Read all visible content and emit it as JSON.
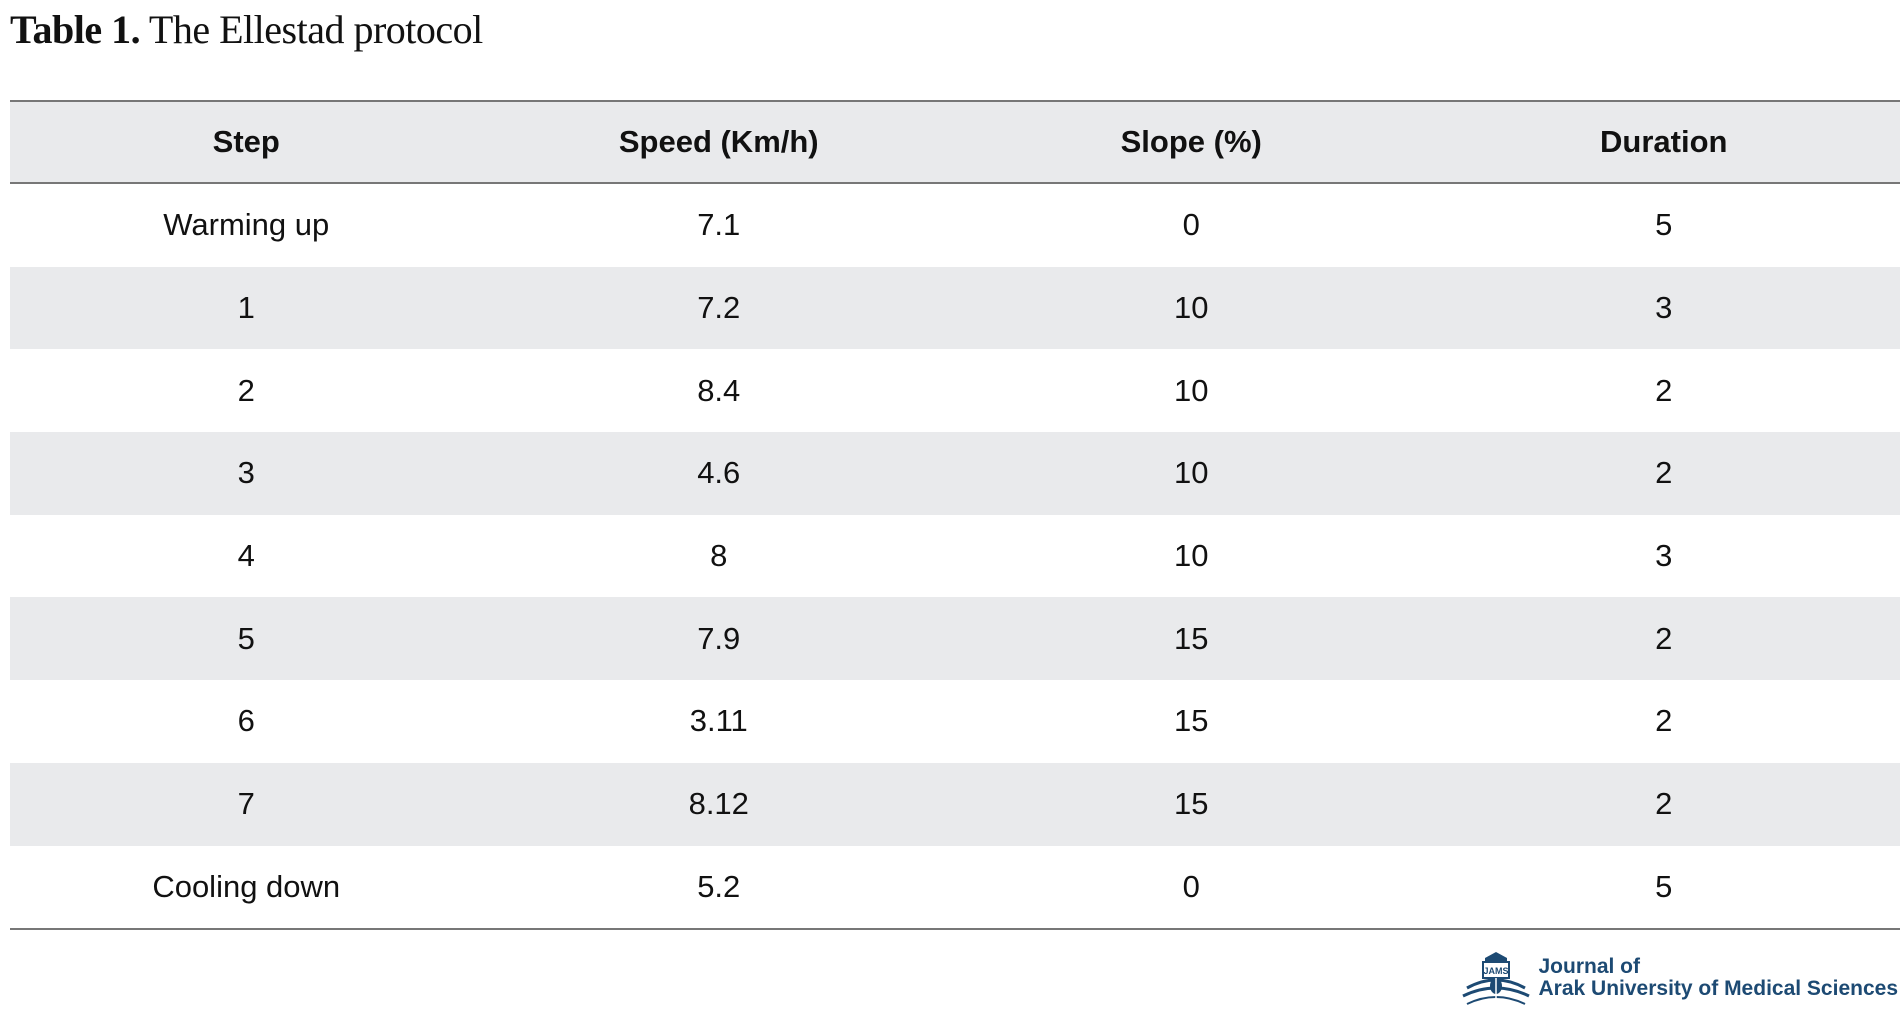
{
  "caption": {
    "label": "Table 1.",
    "title": "The Ellestad protocol"
  },
  "table": {
    "columns": [
      "Step",
      "Speed (Km/h)",
      "Slope (%)",
      "Duration"
    ],
    "rows": [
      [
        "Warming up",
        "7.1",
        "0",
        "5"
      ],
      [
        "1",
        "7.2",
        "10",
        "3"
      ],
      [
        "2",
        "8.4",
        "10",
        "2"
      ],
      [
        "3",
        "4.6",
        "10",
        "2"
      ],
      [
        "4",
        "8",
        "10",
        "3"
      ],
      [
        "5",
        "7.9",
        "15",
        "2"
      ],
      [
        "6",
        "3.11",
        "15",
        "2"
      ],
      [
        "7",
        "8.12",
        "15",
        "2"
      ],
      [
        "Cooling down",
        "5.2",
        "0",
        "5"
      ]
    ]
  },
  "logo": {
    "emblem_text": "JAMS",
    "line1": "Journal of",
    "line2": "Arak University of Medical Sciences"
  },
  "colors": {
    "stripe": "#e9eaec",
    "rule": "#777777",
    "logo_blue": "#1d4a73",
    "logo_gold": "#c8a018"
  }
}
